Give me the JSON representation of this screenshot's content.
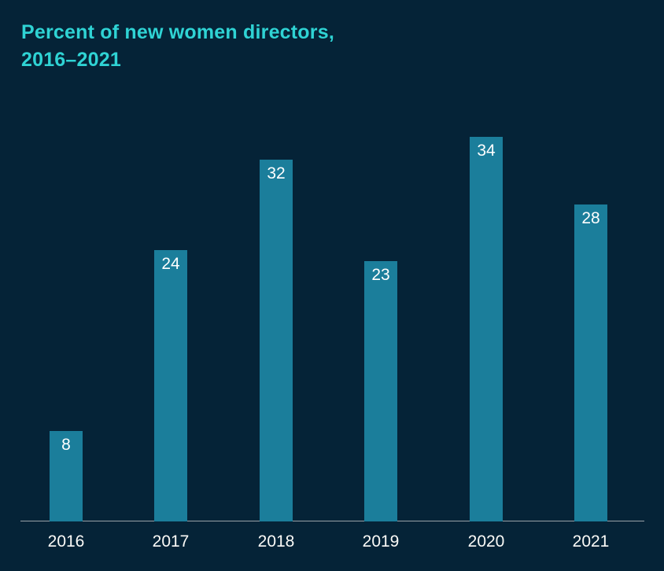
{
  "page": {
    "background_color": "#052337"
  },
  "header": {
    "title_line1": "Percent of new women directors,",
    "title_line2": "2016–2021",
    "title_color": "#2FD3D4"
  },
  "chart_data": {
    "type": "bar",
    "title": "Percent of new women directors, 2016–2021",
    "categories": [
      "2016",
      "2017",
      "2018",
      "2019",
      "2020",
      "2021"
    ],
    "values": [
      8,
      24,
      32,
      23,
      34,
      28
    ],
    "unit": "percent",
    "xlabel": "",
    "ylabel": "",
    "ylim": [
      0,
      36
    ],
    "grid": false,
    "legend": false,
    "y_axis_visible": false,
    "value_labels_position": "inside-top",
    "bar_color": "#1B7E9B",
    "value_label_color": "#FFFFFF",
    "axis_line_color": "#99A1A8",
    "tick_label_color": "#FBFAF7"
  }
}
